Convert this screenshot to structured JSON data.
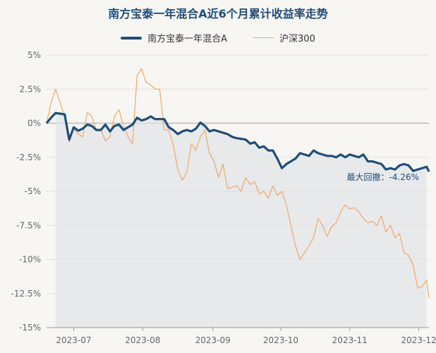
{
  "chart_data": {
    "type": "line",
    "title": "南方宝泰一年混合A近6个月累计收益率走势",
    "xlabel": "",
    "ylabel": "",
    "y_ticks": [
      "5%",
      "2.5%",
      "0%",
      "-2.5%",
      "-5%",
      "-7.5%",
      "-10%",
      "-12.5%",
      "-15%"
    ],
    "y_tick_values": [
      5,
      2.5,
      0,
      -2.5,
      -5,
      -7.5,
      -10,
      -12.5,
      -15
    ],
    "x_ticks": [
      "2023-07",
      "2023-08",
      "2023-09",
      "2023-10",
      "2023-11",
      "2023-12"
    ],
    "x_tick_positions": [
      12,
      42.5,
      73.5,
      103.5,
      134,
      164.5
    ],
    "ylim": [
      -15,
      5
    ],
    "xlim": [
      0,
      169
    ],
    "grid": true,
    "legend_position": "top-center",
    "series": [
      {
        "name": "南方宝泰一年混合A",
        "color": "#1f4e79",
        "x": [
          0,
          2,
          4,
          6,
          8,
          10,
          12,
          14,
          16,
          18,
          20,
          22,
          24,
          26,
          28,
          30,
          32,
          34,
          36,
          38,
          40,
          42,
          44,
          46,
          48,
          50,
          52,
          54,
          56,
          58,
          60,
          62,
          64,
          66,
          68,
          70,
          72,
          74,
          76,
          78,
          80,
          82,
          84,
          86,
          88,
          90,
          92,
          94,
          96,
          98,
          100,
          102,
          104,
          106,
          108,
          110,
          112,
          114,
          116,
          118,
          120,
          122,
          124,
          126,
          128,
          130,
          132,
          134,
          136,
          138,
          140,
          142,
          144,
          146,
          148,
          150,
          152,
          154,
          156,
          158,
          160,
          162,
          164,
          166,
          168,
          169
        ],
        "y": [
          0.0,
          0.4,
          0.75,
          0.7,
          0.65,
          -1.2,
          -0.3,
          -0.55,
          -0.4,
          -0.1,
          -0.2,
          -0.5,
          -0.5,
          -0.1,
          -0.6,
          -0.2,
          -0.1,
          -0.5,
          -0.3,
          -0.1,
          0.4,
          0.2,
          0.3,
          0.5,
          0.3,
          0.3,
          0.3,
          -0.3,
          -0.5,
          -0.8,
          -0.6,
          -0.5,
          -0.6,
          -0.4,
          0.05,
          -0.2,
          -0.6,
          -0.5,
          -0.6,
          -0.7,
          -0.8,
          -1.0,
          -1.1,
          -1.15,
          -1.2,
          -1.5,
          -1.4,
          -1.8,
          -1.7,
          -2.0,
          -2.0,
          -2.6,
          -3.3,
          -3.0,
          -2.8,
          -2.6,
          -2.2,
          -2.3,
          -2.4,
          -2.0,
          -2.2,
          -2.3,
          -2.4,
          -2.4,
          -2.5,
          -2.3,
          -2.5,
          -2.3,
          -2.4,
          -2.5,
          -2.3,
          -2.8,
          -2.8,
          -2.9,
          -3.0,
          -3.4,
          -3.3,
          -3.4,
          -3.1,
          -3.0,
          -3.1,
          -3.5,
          -3.4,
          -3.3,
          -3.2,
          -3.55
        ]
      },
      {
        "name": "沪深300",
        "color": "#f0a868",
        "x": [
          0,
          2,
          4,
          6,
          8,
          10,
          12,
          14,
          16,
          18,
          20,
          22,
          24,
          26,
          28,
          30,
          32,
          34,
          36,
          38,
          40,
          42,
          44,
          46,
          48,
          50,
          52,
          54,
          56,
          58,
          60,
          62,
          64,
          66,
          68,
          70,
          72,
          74,
          76,
          78,
          80,
          82,
          84,
          86,
          88,
          90,
          92,
          94,
          96,
          98,
          100,
          102,
          104,
          106,
          108,
          110,
          112,
          114,
          116,
          118,
          120,
          122,
          124,
          126,
          128,
          130,
          132,
          134,
          136,
          138,
          140,
          142,
          144,
          146,
          148,
          150,
          152,
          154,
          156,
          158,
          160,
          162,
          164,
          166,
          168,
          169
        ],
        "y": [
          0.0,
          1.5,
          2.5,
          1.5,
          0.5,
          -1.4,
          -0.4,
          -0.8,
          -1.0,
          0.8,
          0.5,
          -0.5,
          -0.5,
          -1.3,
          -1.0,
          0.5,
          1.0,
          -0.2,
          -1.0,
          -1.5,
          3.5,
          4.0,
          3.0,
          2.8,
          2.5,
          2.5,
          -0.5,
          -0.5,
          -1.6,
          -3.4,
          -4.2,
          -3.6,
          -1.5,
          -2.0,
          -1.0,
          -0.5,
          -2.2,
          -2.8,
          -4.0,
          -3.0,
          -4.8,
          -4.7,
          -4.6,
          -5.0,
          -4.0,
          -4.5,
          -4.3,
          -5.2,
          -5.0,
          -5.5,
          -4.6,
          -5.3,
          -5.0,
          -6.0,
          -7.5,
          -9.0,
          -10.0,
          -9.5,
          -9.0,
          -8.4,
          -7.0,
          -7.5,
          -8.3,
          -7.6,
          -7.3,
          -6.5,
          -6.0,
          -6.3,
          -6.2,
          -6.5,
          -7.0,
          -7.3,
          -7.2,
          -7.5,
          -6.8,
          -8.0,
          -7.5,
          -8.4,
          -8.1,
          -9.5,
          -9.7,
          -10.4,
          -12.1,
          -12.0,
          -11.5,
          -12.8
        ]
      }
    ],
    "annotation": "最大回撤：-4.26%"
  }
}
